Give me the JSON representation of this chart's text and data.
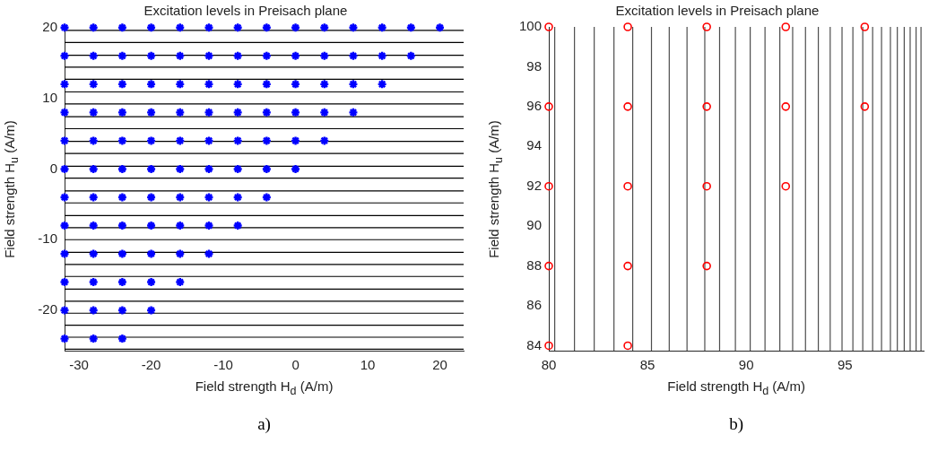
{
  "chart_data": [
    {
      "type": "scatter",
      "title": "Excitation levels in Preisach plane",
      "xlabel": "Field strength H$_{d}$ (A/m)",
      "ylabel": "Field strength H$_{u}$ (A/m)",
      "marker": "cross",
      "grid": false,
      "xlim": [
        -32,
        23.3
      ],
      "ylim": [
        -25.7,
        20.1
      ],
      "xticks": [
        -30,
        -20,
        -10,
        0,
        10,
        20
      ],
      "yticks": [
        -20,
        -10,
        0,
        10,
        20
      ],
      "series": [
        {
          "color": "#0000ff",
          "x": [
            -32,
            -28,
            -24,
            -20,
            -16,
            -12,
            -8,
            -4,
            0,
            4,
            8,
            12,
            16,
            20,
            -32,
            -28,
            -24,
            -20,
            -16,
            -12,
            -8,
            -4,
            0,
            4,
            8,
            12,
            16,
            -32,
            -28,
            -24,
            -20,
            -16,
            -12,
            -8,
            -4,
            0,
            4,
            8,
            12,
            -32,
            -28,
            -24,
            -20,
            -16,
            -12,
            -8,
            -4,
            0,
            4,
            8,
            -32,
            -28,
            -24,
            -20,
            -16,
            -12,
            -8,
            -4,
            0,
            4,
            -32,
            -28,
            -24,
            -20,
            -16,
            -12,
            -8,
            -4,
            0,
            -32,
            -28,
            -24,
            -20,
            -16,
            -12,
            -8,
            -4,
            -32,
            -28,
            -24,
            -20,
            -16,
            -12,
            -8,
            -32,
            -28,
            -24,
            -20,
            -16,
            -12,
            -32,
            -28,
            -24,
            -20,
            -16,
            -32,
            -28,
            -24,
            -20,
            -32,
            -28,
            -24
          ],
          "values": [
            20,
            20,
            20,
            20,
            20,
            20,
            20,
            20,
            20,
            20,
            20,
            20,
            20,
            20,
            16,
            16,
            16,
            16,
            16,
            16,
            16,
            16,
            16,
            16,
            16,
            16,
            16,
            12,
            12,
            12,
            12,
            12,
            12,
            12,
            12,
            12,
            12,
            12,
            12,
            8,
            8,
            8,
            8,
            8,
            8,
            8,
            8,
            8,
            8,
            8,
            4,
            4,
            4,
            4,
            4,
            4,
            4,
            4,
            4,
            4,
            0,
            0,
            0,
            0,
            0,
            0,
            0,
            0,
            0,
            -4,
            -4,
            -4,
            -4,
            -4,
            -4,
            -4,
            -4,
            -8,
            -8,
            -8,
            -8,
            -8,
            -8,
            -8,
            -12,
            -12,
            -12,
            -12,
            -12,
            -12,
            -16,
            -16,
            -16,
            -16,
            -16,
            -20,
            -20,
            -20,
            -20,
            -24,
            -24,
            -24
          ]
        }
      ],
      "ref_lines": [
        {
          "axis": "y",
          "value": 19.6,
          "color": "#000000"
        },
        {
          "axis": "y",
          "value": 17.9,
          "color": "#000000"
        },
        {
          "axis": "y",
          "value": 16.1,
          "color": "#000000"
        },
        {
          "axis": "y",
          "value": 14.4,
          "color": "#000000"
        },
        {
          "axis": "y",
          "value": 12.7,
          "color": "#000000"
        },
        {
          "axis": "y",
          "value": 10.9,
          "color": "#000000"
        },
        {
          "axis": "y",
          "value": 9.2,
          "color": "#000000"
        },
        {
          "axis": "y",
          "value": 7.4,
          "color": "#000000"
        },
        {
          "axis": "y",
          "value": 5.7,
          "color": "#000000"
        },
        {
          "axis": "y",
          "value": 3.9,
          "color": "#000000"
        },
        {
          "axis": "y",
          "value": 2.2,
          "color": "#000000"
        },
        {
          "axis": "y",
          "value": 0.4,
          "color": "#000000"
        },
        {
          "axis": "y",
          "value": -1.3,
          "color": "#000000"
        },
        {
          "axis": "y",
          "value": -3.1,
          "color": "#000000"
        },
        {
          "axis": "y",
          "value": -4.8,
          "color": "#000000"
        },
        {
          "axis": "y",
          "value": -6.6,
          "color": "#000000"
        },
        {
          "axis": "y",
          "value": -8.3,
          "color": "#000000"
        },
        {
          "axis": "y",
          "value": -10.0,
          "color": "#000000"
        },
        {
          "axis": "y",
          "value": -11.8,
          "color": "#000000"
        },
        {
          "axis": "y",
          "value": -13.5,
          "color": "#000000"
        },
        {
          "axis": "y",
          "value": -15.2,
          "color": "#000000"
        },
        {
          "axis": "y",
          "value": -17.0,
          "color": "#000000"
        },
        {
          "axis": "y",
          "value": -18.7,
          "color": "#000000"
        },
        {
          "axis": "y",
          "value": -20.4,
          "color": "#000000"
        },
        {
          "axis": "y",
          "value": -22.1,
          "color": "#000000"
        },
        {
          "axis": "y",
          "value": -23.8,
          "color": "#000000"
        },
        {
          "axis": "y",
          "value": -25.5,
          "color": "#000000"
        }
      ],
      "annotations": [
        "a)"
      ]
    },
    {
      "type": "scatter",
      "title": "Excitation levels in Preisach plane",
      "xlabel": "Field strength H$_{d}$ (A/m)",
      "ylabel": "Field strength H$_{u}$ (A/m)",
      "marker": "circle",
      "grid": false,
      "xlim": [
        80,
        99
      ],
      "ylim": [
        83.75,
        100
      ],
      "xticks": [
        80,
        85,
        90,
        95
      ],
      "yticks": [
        84,
        86,
        88,
        90,
        92,
        94,
        96,
        98,
        100
      ],
      "series": [
        {
          "color": "#ff0000",
          "x": [
            80,
            80,
            80,
            80,
            80,
            84,
            84,
            84,
            84,
            84,
            88,
            88,
            88,
            88,
            92,
            92,
            92,
            96,
            96
          ],
          "values": [
            84,
            88,
            92,
            96,
            100,
            84,
            88,
            92,
            96,
            100,
            88,
            92,
            96,
            100,
            92,
            96,
            100,
            96,
            100
          ]
        }
      ],
      "ref_lines": [
        {
          "axis": "x",
          "value": 80.3,
          "color": "#4d4d4d"
        },
        {
          "axis": "x",
          "value": 81.3,
          "color": "#4d4d4d"
        },
        {
          "axis": "x",
          "value": 82.3,
          "color": "#4d4d4d"
        },
        {
          "axis": "x",
          "value": 83.3,
          "color": "#4d4d4d"
        },
        {
          "axis": "x",
          "value": 84.25,
          "color": "#4d4d4d"
        },
        {
          "axis": "x",
          "value": 85.2,
          "color": "#4d4d4d"
        },
        {
          "axis": "x",
          "value": 86.1,
          "color": "#4d4d4d"
        },
        {
          "axis": "x",
          "value": 87.0,
          "color": "#4d4d4d"
        },
        {
          "axis": "x",
          "value": 87.9,
          "color": "#4d4d4d"
        },
        {
          "axis": "x",
          "value": 88.65,
          "color": "#4d4d4d"
        },
        {
          "axis": "x",
          "value": 89.45,
          "color": "#4d4d4d"
        },
        {
          "axis": "x",
          "value": 90.2,
          "color": "#4d4d4d"
        },
        {
          "axis": "x",
          "value": 90.95,
          "color": "#4d4d4d"
        },
        {
          "axis": "x",
          "value": 91.7,
          "color": "#4d4d4d"
        },
        {
          "axis": "x",
          "value": 92.35,
          "color": "#4d4d4d"
        },
        {
          "axis": "x",
          "value": 93.0,
          "color": "#4d4d4d"
        },
        {
          "axis": "x",
          "value": 93.65,
          "color": "#4d4d4d"
        },
        {
          "axis": "x",
          "value": 94.25,
          "color": "#4d4d4d"
        },
        {
          "axis": "x",
          "value": 94.85,
          "color": "#4d4d4d"
        },
        {
          "axis": "x",
          "value": 95.4,
          "color": "#4d4d4d"
        },
        {
          "axis": "x",
          "value": 95.9,
          "color": "#4d4d4d"
        },
        {
          "axis": "x",
          "value": 96.4,
          "color": "#4d4d4d"
        },
        {
          "axis": "x",
          "value": 96.85,
          "color": "#4d4d4d"
        },
        {
          "axis": "x",
          "value": 97.3,
          "color": "#4d4d4d"
        },
        {
          "axis": "x",
          "value": 97.65,
          "color": "#4d4d4d"
        },
        {
          "axis": "x",
          "value": 98.0,
          "color": "#4d4d4d"
        },
        {
          "axis": "x",
          "value": 98.3,
          "color": "#4d4d4d"
        },
        {
          "axis": "x",
          "value": 98.6,
          "color": "#4d4d4d"
        },
        {
          "axis": "x",
          "value": 98.85,
          "color": "#4d4d4d"
        }
      ],
      "annotations": [
        "b)"
      ]
    }
  ]
}
